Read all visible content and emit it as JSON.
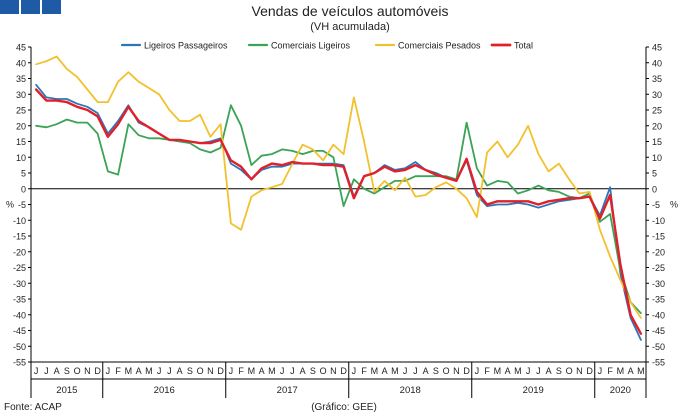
{
  "chart_data": {
    "type": "line",
    "title": "Vendas de veículos automóveis",
    "subtitle": "(VH acumulada)",
    "ylabel": "%",
    "ylim": [
      -55,
      45
    ],
    "yticks": [
      45,
      40,
      35,
      30,
      25,
      20,
      15,
      10,
      5,
      0,
      -5,
      -10,
      -15,
      -20,
      -25,
      -30,
      -35,
      -40,
      -45,
      -50,
      -55
    ],
    "grid": false,
    "legend_position": "top",
    "x_months": [
      "J",
      "J",
      "A",
      "S",
      "O",
      "N",
      "D",
      "J",
      "F",
      "M",
      "A",
      "M",
      "J",
      "J",
      "A",
      "S",
      "O",
      "N",
      "D",
      "J",
      "F",
      "M",
      "A",
      "M",
      "J",
      "J",
      "A",
      "S",
      "O",
      "N",
      "D",
      "J",
      "F",
      "M",
      "A",
      "M",
      "J",
      "J",
      "A",
      "S",
      "O",
      "N",
      "D",
      "J",
      "F",
      "M",
      "A",
      "M",
      "J",
      "J",
      "A",
      "S",
      "O",
      "N",
      "D",
      "J",
      "F",
      "M",
      "A",
      "M"
    ],
    "year_groups": [
      {
        "label": "2015",
        "start": 0,
        "count": 7
      },
      {
        "label": "2016",
        "start": 7,
        "count": 12
      },
      {
        "label": "2017",
        "start": 19,
        "count": 12
      },
      {
        "label": "2018",
        "start": 31,
        "count": 12
      },
      {
        "label": "2019",
        "start": 43,
        "count": 12
      },
      {
        "label": "2020",
        "start": 55,
        "count": 5
      }
    ],
    "series": [
      {
        "name": "Ligeiros Passageiros",
        "color": "#2e75b6",
        "width": 1.8,
        "values": [
          33,
          29,
          28.5,
          28.5,
          27,
          26,
          24,
          17.5,
          21.5,
          26.5,
          21,
          19.5,
          17.5,
          15.5,
          15.5,
          15,
          14.5,
          15,
          16,
          8,
          6,
          3,
          6,
          7,
          7,
          8,
          8,
          8,
          8,
          8,
          7.5,
          -2.5,
          4,
          5,
          7.5,
          6,
          6.5,
          8.5,
          6,
          5,
          3.5,
          2.5,
          9,
          -2,
          -5.5,
          -5,
          -5,
          -4.5,
          -5,
          -6,
          -5,
          -4,
          -3.5,
          -3,
          -2.5,
          -8.5,
          0.5,
          -27,
          -41,
          -48
        ]
      },
      {
        "name": "Comerciais Ligeiros",
        "color": "#3aa356",
        "width": 1.8,
        "values": [
          20,
          19.5,
          20.5,
          22,
          21,
          21,
          17.5,
          5.5,
          4.5,
          20.5,
          17,
          16,
          16,
          15.5,
          15,
          14.5,
          12.5,
          11.5,
          13,
          26.5,
          20,
          7.5,
          10.5,
          11,
          12.5,
          12,
          11,
          12,
          12,
          10,
          -5.5,
          3,
          0,
          -1.5,
          0.5,
          2.5,
          2.5,
          4,
          4,
          4,
          4,
          3,
          21,
          6.5,
          1,
          2.5,
          2,
          -1.5,
          -0.5,
          1,
          -0.5,
          -1,
          -2.5,
          -3,
          -1.5,
          -10.5,
          -8,
          -26,
          -36,
          -39.5
        ]
      },
      {
        "name": "Comerciais Pesados",
        "color": "#f2c12e",
        "width": 1.8,
        "values": [
          39.5,
          40.5,
          42,
          38,
          35.5,
          31.5,
          27.5,
          27.5,
          34,
          37,
          34,
          32,
          30,
          25,
          21.5,
          21.5,
          23.5,
          16.5,
          20.5,
          -11,
          -13,
          -2.5,
          -0.5,
          0.5,
          1.5,
          8,
          14,
          12.5,
          9,
          14,
          11,
          29,
          15,
          -1,
          2.5,
          -0.5,
          3.5,
          -2.5,
          -2,
          0.5,
          2,
          0,
          -3,
          -9,
          11.5,
          15,
          10,
          14,
          20,
          11,
          5.5,
          8,
          3,
          -1.5,
          -1,
          -13,
          -21.5,
          -29,
          -36,
          -41
        ]
      },
      {
        "name": "Total",
        "color": "#e0202a",
        "width": 2.4,
        "values": [
          31.5,
          28,
          28,
          27.5,
          26,
          25,
          23,
          16.5,
          20.5,
          26,
          21.5,
          19.5,
          17.5,
          15.5,
          15.5,
          15,
          14.5,
          14.5,
          15.5,
          9,
          7,
          3,
          6.5,
          8,
          7.5,
          8.5,
          8,
          8,
          7.5,
          7.5,
          7,
          -3,
          4,
          5,
          7,
          5.5,
          6,
          7.5,
          6,
          4.5,
          3.5,
          2.5,
          9.5,
          -1,
          -5,
          -4,
          -4,
          -4,
          -4,
          -5,
          -4,
          -3.5,
          -3,
          -3,
          -2.5,
          -9.5,
          -2,
          -24,
          -40,
          -46
        ]
      }
    ]
  },
  "footer": {
    "source": "Fonte: ACAP",
    "credit": "(Gráfico: GEE)"
  }
}
